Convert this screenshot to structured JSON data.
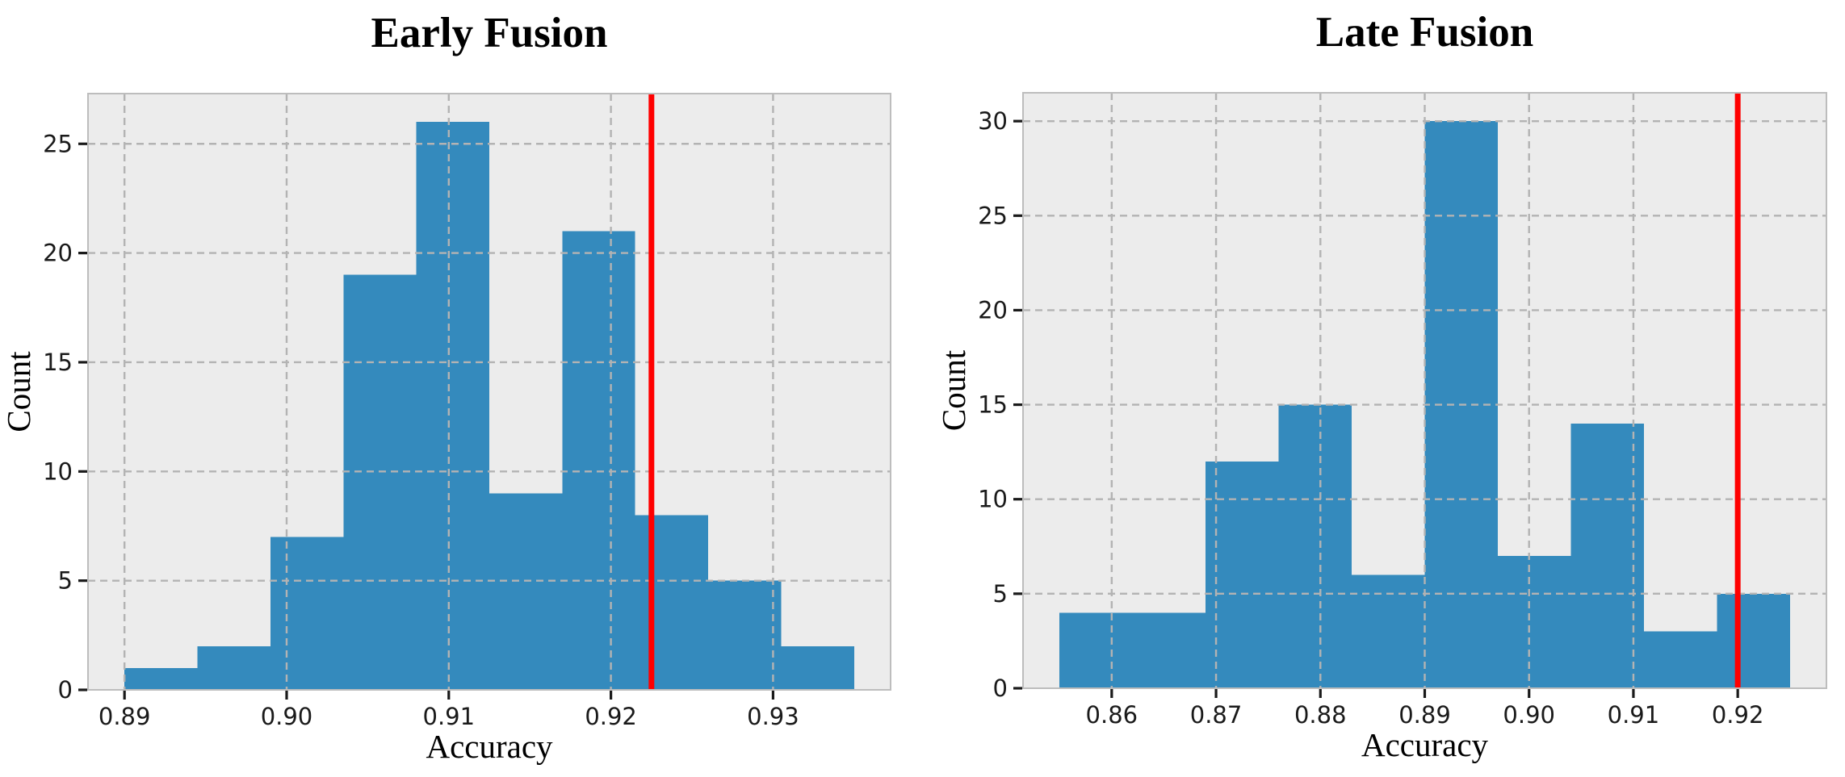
{
  "figure": {
    "background": "#ffffff",
    "description": "Two bootstrap accuracy histograms side by side with red observed-accuracy reference lines"
  },
  "palette": {
    "bar": "#348abd",
    "axes_face": "#ececec",
    "grid": "#b3b3b3",
    "spine": "#bdbdbd",
    "vline": "#ff0000",
    "text": "#000000",
    "tick_text": "#1a1a1a"
  },
  "chart_data": [
    {
      "type": "bar",
      "subtype": "histogram",
      "id": "early-fusion",
      "title": "Early Fusion",
      "xlabel": "Accuracy",
      "ylabel": "Count",
      "bin_edges": [
        0.89,
        0.8945,
        0.899,
        0.9035,
        0.908,
        0.9125,
        0.917,
        0.9215,
        0.926,
        0.9305,
        0.935
      ],
      "counts": [
        1,
        2,
        7,
        19,
        26,
        9,
        21,
        8,
        5,
        2
      ],
      "total_samples": 100,
      "xlim": [
        0.88775,
        0.93725
      ],
      "ylim": [
        0,
        27.3
      ],
      "xticks": [
        {
          "v": 0.89,
          "label": "0.89"
        },
        {
          "v": 0.9,
          "label": "0.90"
        },
        {
          "v": 0.91,
          "label": "0.91"
        },
        {
          "v": 0.92,
          "label": "0.92"
        },
        {
          "v": 0.93,
          "label": "0.93"
        }
      ],
      "yticks": [
        0,
        5,
        10,
        15,
        20,
        25
      ],
      "grid": true,
      "legend": null,
      "vline": {
        "x": 0.9225,
        "color": "#ff0000"
      }
    },
    {
      "type": "bar",
      "subtype": "histogram",
      "id": "late-fusion",
      "title": "Late Fusion",
      "xlabel": "Accuracy",
      "ylabel": "Count",
      "bin_edges": [
        0.855,
        0.862,
        0.869,
        0.876,
        0.883,
        0.89,
        0.897,
        0.904,
        0.911,
        0.918,
        0.925
      ],
      "counts": [
        4,
        4,
        12,
        15,
        6,
        30,
        7,
        14,
        3,
        5
      ],
      "total_samples": 100,
      "xlim": [
        0.8515,
        0.9285
      ],
      "ylim": [
        0,
        31.5
      ],
      "xticks": [
        {
          "v": 0.86,
          "label": "0.86"
        },
        {
          "v": 0.87,
          "label": "0.87"
        },
        {
          "v": 0.88,
          "label": "0.88"
        },
        {
          "v": 0.89,
          "label": "0.89"
        },
        {
          "v": 0.9,
          "label": "0.90"
        },
        {
          "v": 0.91,
          "label": "0.91"
        },
        {
          "v": 0.92,
          "label": "0.92"
        }
      ],
      "yticks": [
        0,
        5,
        10,
        15,
        20,
        25,
        30
      ],
      "grid": true,
      "legend": null,
      "vline": {
        "x": 0.92,
        "color": "#ff0000"
      }
    }
  ]
}
